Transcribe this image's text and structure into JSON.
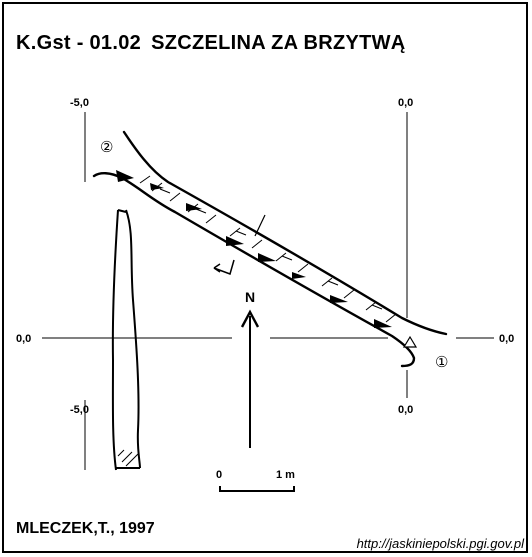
{
  "header": {
    "code": "K.Gst - 01.02",
    "name": "SZCZELINA ZA BRZYTWĄ"
  },
  "author": "MLECZEK,T., 1997",
  "source_url": "http://jaskiniepolski.pgi.gov.pl",
  "grid": {
    "left_top_label": "-5,0",
    "left_bottom_label": "-5,0",
    "right_top_label": "0,0",
    "right_bottom_label": "0,0",
    "horizontal_left_label": "0,0",
    "horizontal_right_label": "0,0"
  },
  "north_label": "N",
  "scale": {
    "start_label": "0",
    "end_label": "1 m"
  },
  "markers": {
    "point_1": "①",
    "point_2": "②"
  }
}
